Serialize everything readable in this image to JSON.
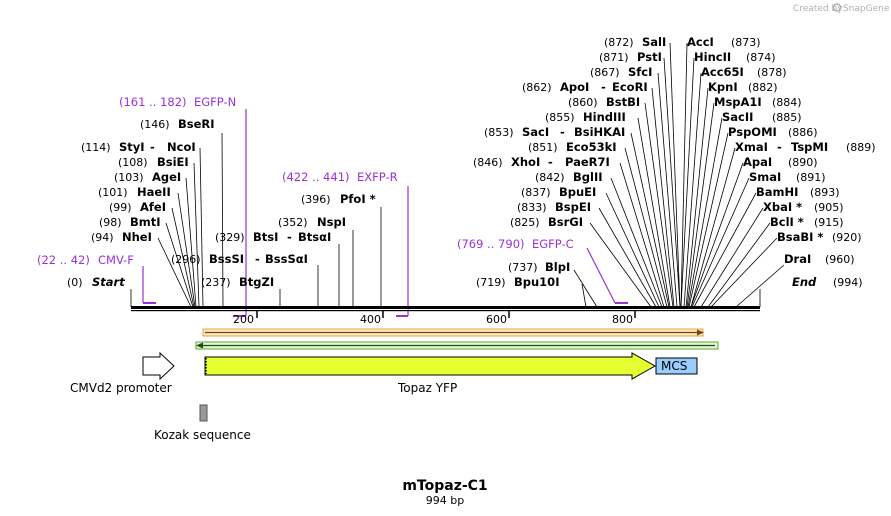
{
  "credit": {
    "created_by": "Created by",
    "brand": "SnapGene"
  },
  "title": {
    "name": "mTopaz-C1",
    "length": "994 bp"
  },
  "ruler": {
    "ticks": [
      "200",
      "400",
      "600",
      "800"
    ]
  },
  "enzymes": {
    "start": {
      "pos": "(0)",
      "name": "Start"
    },
    "end": {
      "pos": "(994)",
      "name": "End"
    },
    "left": [
      {
        "pos": "(94)",
        "name": "NheI"
      },
      {
        "pos": "(98)",
        "name": "BmtI"
      },
      {
        "pos": "(99)",
        "name": "AfeI"
      },
      {
        "pos": "(101)",
        "name": "HaeII"
      },
      {
        "pos": "(103)",
        "name": "AgeI"
      },
      {
        "pos": "(108)",
        "name": "BsiEI"
      },
      {
        "pos": "(114)",
        "name": "StyI",
        "name2": "NcoI"
      },
      {
        "pos": "(146)",
        "name": "BseRI"
      }
    ],
    "mid": [
      {
        "pos": "(237)",
        "name": "BtgZI"
      },
      {
        "pos": "(296)",
        "name": "BssSI",
        "name2": "BssSαI"
      },
      {
        "pos": "(329)",
        "name": "BtsI",
        "name2": "BtsαI"
      },
      {
        "pos": "(352)",
        "name": "NspI"
      },
      {
        "pos": "(396)",
        "name": "PfoI *"
      }
    ],
    "right_low": [
      {
        "pos": "(719)",
        "name": "Bpu10I"
      },
      {
        "pos": "(737)",
        "name": "BlpI"
      }
    ],
    "mcs_left": [
      {
        "pos": "(825)",
        "name": "BsrGI"
      },
      {
        "pos": "(833)",
        "name": "BspEI"
      },
      {
        "pos": "(837)",
        "name": "BpuEI"
      },
      {
        "pos": "(842)",
        "name": "BglII"
      },
      {
        "pos": "(846)",
        "name": "XhoI",
        "name2": "PaeR7I"
      },
      {
        "pos": "(851)",
        "name": "Eco53kI"
      },
      {
        "pos": "(853)",
        "name": "SacI",
        "name2": "BsiHKAI"
      },
      {
        "pos": "(855)",
        "name": "HindIII"
      },
      {
        "pos": "(860)",
        "name": "BstBI"
      },
      {
        "pos": "(862)",
        "name": "ApoI",
        "name2": "EcoRI"
      },
      {
        "pos": "(867)",
        "name": "SfcI"
      },
      {
        "pos": "(871)",
        "name": "PstI"
      },
      {
        "pos": "(872)",
        "name": "SalI"
      }
    ],
    "mcs_right": [
      {
        "pos": "(873)",
        "name": "AccI"
      },
      {
        "pos": "(874)",
        "name": "HincII"
      },
      {
        "pos": "(878)",
        "name": "Acc65I"
      },
      {
        "pos": "(882)",
        "name": "KpnI"
      },
      {
        "pos": "(884)",
        "name": "MspA1I"
      },
      {
        "pos": "(885)",
        "name": "SacII"
      },
      {
        "pos": "(886)",
        "name": "PspOMI"
      },
      {
        "pos": "(889)",
        "name": "XmaI",
        "name2": "TspMI"
      },
      {
        "pos": "(890)",
        "name": "ApaI"
      },
      {
        "pos": "(891)",
        "name": "SmaI"
      },
      {
        "pos": "(893)",
        "name": "BamHI"
      },
      {
        "pos": "(905)",
        "name": "XbaI *"
      },
      {
        "pos": "(915)",
        "name": "BclI *"
      },
      {
        "pos": "(920)",
        "name": "BsaBI *"
      },
      {
        "pos": "(960)",
        "name": "DraI"
      }
    ]
  },
  "primers": [
    {
      "range": "(22 .. 42)",
      "name": "CMV-F"
    },
    {
      "range": "(161 .. 182)",
      "name": "EGFP-N"
    },
    {
      "range": "(422 .. 441)",
      "name": "EXFP-R"
    },
    {
      "range": "(769 .. 790)",
      "name": "EGFP-C"
    }
  ],
  "features": {
    "promoter": "CMVd2 promoter",
    "gene": "Topaz YFP",
    "mcs": "MCS",
    "kozak": "Kozak sequence"
  },
  "colors": {
    "primer": "#9b30d9",
    "gene_fill": "#e6ff33",
    "mcs_fill": "#99ccff",
    "orf_forward": "#e8a33d",
    "orf_reverse": "#5fa832",
    "kozak_fill": "#999999"
  }
}
